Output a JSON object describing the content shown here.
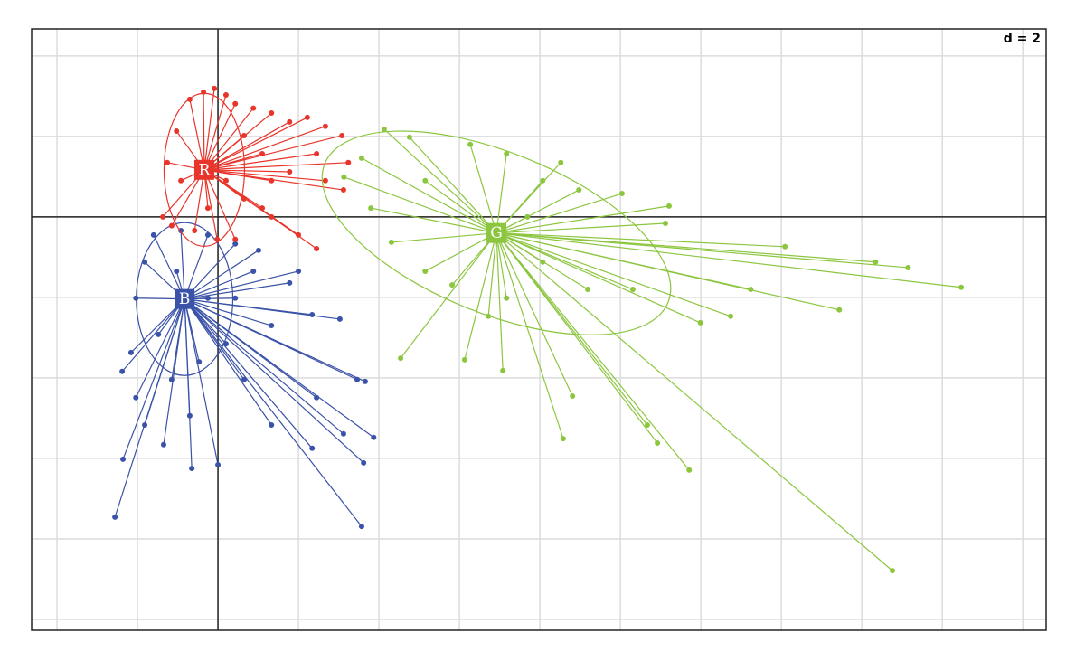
{
  "chart_data": {
    "type": "scatter-class",
    "annotation": "d = 2",
    "xlim": [
      -4.63,
      20.58
    ],
    "ylim": [
      -10.27,
      4.67
    ],
    "xticks": [
      -4,
      -2,
      0,
      2,
      4,
      6,
      8,
      10,
      12,
      14,
      16,
      18,
      20
    ],
    "yticks": [
      -10,
      -8,
      -6,
      -4,
      -2,
      0,
      2,
      4
    ],
    "grid": true,
    "series": [
      {
        "name": "B",
        "color": "#3a52a8",
        "center": [
          -0.83,
          -2.04
        ],
        "ellipse": {
          "rx": 1.2,
          "ry": 1.9,
          "angle": 0
        },
        "x": [
          -2.56,
          -2.36,
          -2.38,
          3.57,
          3.62,
          3.87,
          3.66,
          3.03,
          2.34,
          2.0,
          1.78,
          1.01,
          0,
          -0.65,
          -1.35,
          -1.82,
          -2.04,
          -2.16,
          -2.04,
          -1.82,
          -1.6,
          -0.92,
          -0.25,
          0.43,
          0.88,
          1.33,
          2.45,
          3.12,
          1.33,
          0.65,
          0.2,
          -0.47,
          -1.15,
          -1.48,
          -0.25,
          0.43,
          -1.03,
          -0.7,
          2.34,
          3.46
        ],
        "y": [
          -7.46,
          -6.02,
          -3.84,
          -7.69,
          -6.11,
          -5.48,
          -4.09,
          -2.54,
          -2.43,
          -1.35,
          -1.64,
          -0.83,
          -6.16,
          -6.25,
          -5.66,
          -5.17,
          -4.49,
          -3.37,
          -2.02,
          -1.12,
          -0.45,
          -0.34,
          -0.45,
          -0.67,
          -1.35,
          -2.7,
          -4.49,
          -5.39,
          -5.17,
          -4.04,
          -3.15,
          -3.6,
          -4.04,
          -2.92,
          -2.02,
          -2.02,
          -1.35,
          -4.94,
          -5.75,
          -4.04
        ]
      },
      {
        "name": "R",
        "color": "#e8342a",
        "center": [
          -0.34,
          1.17
        ],
        "ellipse": {
          "rx": 1.0,
          "ry": 1.9,
          "angle": 0
        },
        "x": [
          -0.09,
          -0.36,
          -0.7,
          -1.03,
          -1.26,
          -1.37,
          -1.15,
          -0.58,
          -0.02,
          0.43,
          1.1,
          2.45,
          2.0,
          1.33,
          3.12,
          3.24,
          3.08,
          2.67,
          2.22,
          1.78,
          1.33,
          0.88,
          0.43,
          0.2,
          0.65,
          1.1,
          1.78,
          2.67,
          -0.25,
          -0.92,
          0.2,
          1.33,
          0.65,
          2.45
        ],
        "y": [
          3.19,
          3.1,
          2.92,
          2.13,
          1.35,
          0,
          -0.22,
          -0.34,
          -0.56,
          -0.56,
          0.22,
          -0.79,
          -0.45,
          0,
          0.67,
          1.35,
          2.02,
          2.25,
          2.47,
          2.36,
          2.58,
          2.7,
          2.81,
          3.03,
          2.02,
          1.57,
          1.12,
          0.9,
          0.22,
          0.9,
          0.9,
          0.9,
          0.45,
          1.57
        ]
      },
      {
        "name": "G",
        "color": "#8cc63f",
        "center": [
          6.92,
          -0.4
        ],
        "ellipse": {
          "rx": 4.6,
          "ry": 2.0,
          "angle": -22
        },
        "x": [
          16.76,
          11.71,
          10.92,
          10.67,
          8.58,
          8.81,
          7.08,
          6.13,
          4.54,
          18.47,
          17.15,
          16.34,
          14.09,
          15.44,
          12.74,
          13.24,
          11.99,
          11.12,
          11.21,
          10.04,
          8.97,
          7.69,
          6.27,
          4.13,
          4.76,
          3.57,
          3.13,
          3.8,
          4.31,
          5.15,
          5.82,
          6.72,
          7.17,
          8.07,
          9.19,
          10.31,
          8.07,
          5.15,
          7.17,
          8.52
        ],
        "y": [
          -8.79,
          -6.29,
          -5.62,
          -5.17,
          -5.51,
          -4.45,
          -3.82,
          -3.55,
          -3.51,
          -1.75,
          -1.26,
          -1.12,
          -0.74,
          -2.31,
          -2.47,
          -1.8,
          -2.63,
          -0.16,
          0.27,
          0.58,
          0.67,
          0,
          1.8,
          2.18,
          1.98,
          1.46,
          0.99,
          0.22,
          -0.63,
          -1.35,
          -1.69,
          -2.47,
          -2.02,
          -1.12,
          -1.8,
          -1.8,
          0.9,
          0.9,
          1.57,
          1.35
        ]
      }
    ]
  }
}
